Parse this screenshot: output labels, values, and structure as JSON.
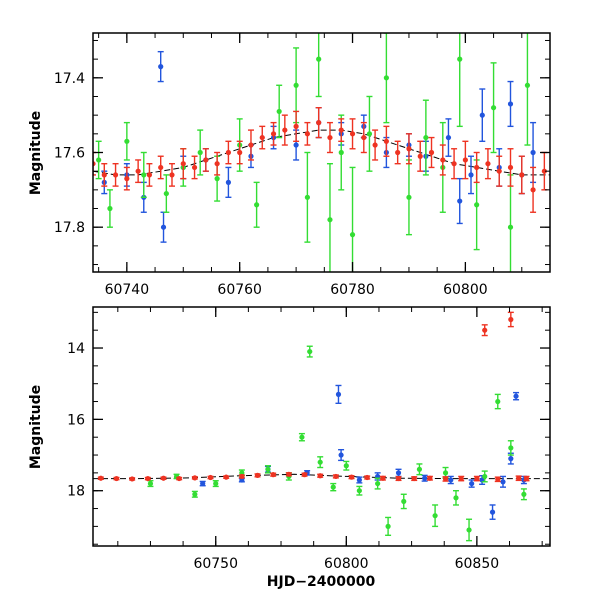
{
  "chart_data": [
    {
      "type": "scatter",
      "panel": "top",
      "title": "",
      "xlabel": "",
      "ylabel": "Magnitude",
      "xlim": [
        60734,
        60815
      ],
      "ylim": [
        17.92,
        17.28
      ],
      "y_inverted": true,
      "grid": false,
      "x_ticks": [
        60740,
        60760,
        60780,
        60800
      ],
      "x_tick_labels": [
        "60740",
        "60760",
        "60780",
        "60800"
      ],
      "y_ticks": [
        17.4,
        17.6,
        17.8
      ],
      "y_tick_labels": [
        "17.4",
        "17.6",
        "17.8"
      ],
      "model_curve": {
        "color": "#000000",
        "x": [
          60734,
          60738,
          60742,
          60746,
          60750,
          60754,
          60758,
          60762,
          60766,
          60770,
          60774,
          60778,
          60782,
          60786,
          60790,
          60794,
          60798,
          60802,
          60806,
          60810,
          60815
        ],
        "y": [
          17.65,
          17.66,
          17.66,
          17.65,
          17.64,
          17.62,
          17.6,
          17.58,
          17.56,
          17.55,
          17.54,
          17.54,
          17.55,
          17.57,
          17.59,
          17.61,
          17.63,
          17.64,
          17.65,
          17.66,
          17.66
        ]
      },
      "series": [
        {
          "color": "#2255dd",
          "x": [
            60736,
            60740,
            60743,
            60746,
            60746.5,
            60750,
            60754,
            60758,
            60762,
            60766,
            60770,
            60774,
            60778,
            60782,
            60786,
            60790,
            60793,
            60797,
            60799,
            60801,
            60803,
            60806,
            60808,
            60810,
            60812
          ],
          "y": [
            17.68,
            17.66,
            17.72,
            17.37,
            17.8,
            17.64,
            17.62,
            17.68,
            17.61,
            17.56,
            17.58,
            17.52,
            17.55,
            17.53,
            17.6,
            17.58,
            17.61,
            17.56,
            17.73,
            17.66,
            17.5,
            17.64,
            17.47,
            17.66,
            17.6
          ],
          "yerr": [
            0.03,
            0.03,
            0.04,
            0.04,
            0.04,
            0.03,
            0.03,
            0.04,
            0.03,
            0.03,
            0.04,
            0.04,
            0.03,
            0.03,
            0.04,
            0.03,
            0.04,
            0.05,
            0.06,
            0.05,
            0.07,
            0.05,
            0.06,
            0.05,
            0.08
          ]
        },
        {
          "color": "#33dd33",
          "x": [
            60735,
            60737,
            60740,
            60743,
            60747,
            60750,
            60753,
            60756,
            60760,
            60763,
            60767,
            60770,
            60772,
            60774,
            60776,
            60778,
            60780,
            60783,
            60786,
            60790,
            60793,
            60796,
            60799,
            60802,
            60805,
            60808,
            60811
          ],
          "y": [
            17.62,
            17.75,
            17.57,
            17.66,
            17.71,
            17.64,
            17.6,
            17.67,
            17.58,
            17.74,
            17.49,
            17.42,
            17.72,
            17.35,
            17.78,
            17.6,
            17.82,
            17.55,
            17.4,
            17.72,
            17.56,
            17.64,
            17.35,
            17.74,
            17.48,
            17.8,
            17.42
          ],
          "yerr": [
            0.05,
            0.05,
            0.05,
            0.06,
            0.05,
            0.05,
            0.06,
            0.06,
            0.07,
            0.06,
            0.07,
            0.1,
            0.12,
            0.1,
            0.15,
            0.1,
            0.18,
            0.1,
            0.12,
            0.1,
            0.1,
            0.12,
            0.18,
            0.12,
            0.12,
            0.14,
            0.16
          ]
        },
        {
          "color": "#ee3322",
          "x": [
            60734,
            60736,
            60738,
            60740,
            60742,
            60744,
            60746,
            60748,
            60750,
            60752,
            60754,
            60756,
            60758,
            60760,
            60762,
            60764,
            60766,
            60768,
            60770,
            60772,
            60774,
            60776,
            60778,
            60780,
            60782,
            60784,
            60786,
            60788,
            60790,
            60792,
            60794,
            60796,
            60798,
            60800,
            60802,
            60804,
            60806,
            60808,
            60810,
            60812,
            60814
          ],
          "y": [
            17.63,
            17.66,
            17.66,
            17.67,
            17.65,
            17.66,
            17.64,
            17.66,
            17.63,
            17.64,
            17.62,
            17.63,
            17.6,
            17.6,
            17.58,
            17.56,
            17.55,
            17.54,
            17.53,
            17.55,
            17.52,
            17.56,
            17.54,
            17.55,
            17.56,
            17.58,
            17.57,
            17.6,
            17.59,
            17.61,
            17.6,
            17.62,
            17.63,
            17.62,
            17.64,
            17.63,
            17.65,
            17.64,
            17.66,
            17.7,
            17.65
          ],
          "yerr": [
            0.03,
            0.03,
            0.03,
            0.03,
            0.03,
            0.03,
            0.03,
            0.03,
            0.04,
            0.03,
            0.03,
            0.03,
            0.03,
            0.03,
            0.04,
            0.03,
            0.03,
            0.04,
            0.04,
            0.03,
            0.04,
            0.04,
            0.03,
            0.04,
            0.04,
            0.04,
            0.04,
            0.03,
            0.04,
            0.04,
            0.04,
            0.04,
            0.04,
            0.05,
            0.04,
            0.04,
            0.04,
            0.05,
            0.05,
            0.06,
            0.05
          ]
        }
      ]
    },
    {
      "type": "scatter",
      "panel": "bottom",
      "title": "",
      "xlabel": "HJD−2400000",
      "ylabel": "Magnitude",
      "xlim": [
        60703,
        60878
      ],
      "ylim": [
        19.55,
        12.85
      ],
      "y_inverted": true,
      "grid": false,
      "x_ticks": [
        60750,
        60800,
        60850
      ],
      "x_tick_labels": [
        "60750",
        "60800",
        "60850"
      ],
      "y_ticks": [
        14,
        16,
        18
      ],
      "y_tick_labels": [
        "14",
        "16",
        "18"
      ],
      "model_curve": {
        "color": "#000000",
        "x": [
          60703,
          60720,
          60740,
          60760,
          60780,
          60800,
          60820,
          60840,
          60860,
          60878
        ],
        "y": [
          17.66,
          17.66,
          17.64,
          17.58,
          17.54,
          17.6,
          17.65,
          17.66,
          17.66,
          17.66
        ]
      },
      "series": [
        {
          "color": "#2255dd",
          "x": [
            60745,
            60760,
            60770,
            60785,
            60797,
            60798,
            60805,
            60812,
            60820,
            60830,
            60840,
            60848,
            60852,
            60856,
            60860,
            60863,
            60865,
            60868
          ],
          "y": [
            17.8,
            17.7,
            17.4,
            17.5,
            15.3,
            17.0,
            17.7,
            17.6,
            17.5,
            17.65,
            17.7,
            17.8,
            17.7,
            18.6,
            17.75,
            17.1,
            15.35,
            17.7
          ],
          "yerr": [
            0.06,
            0.05,
            0.08,
            0.06,
            0.25,
            0.15,
            0.08,
            0.1,
            0.1,
            0.08,
            0.1,
            0.1,
            0.12,
            0.2,
            0.15,
            0.15,
            0.1,
            0.1
          ]
        },
        {
          "color": "#33dd33",
          "x": [
            60725,
            60735,
            60742,
            60750,
            60760,
            60770,
            60778,
            60783,
            60786,
            60790,
            60795,
            60800,
            60805,
            60812,
            60816,
            60822,
            60828,
            60834,
            60838,
            60842,
            60847,
            60853,
            60858,
            60863,
            60868
          ],
          "y": [
            17.8,
            17.6,
            18.1,
            17.8,
            17.5,
            17.4,
            17.6,
            16.5,
            14.1,
            17.2,
            17.9,
            17.3,
            18.0,
            17.8,
            19.0,
            18.3,
            17.4,
            18.7,
            17.5,
            18.2,
            19.1,
            17.6,
            15.5,
            16.8,
            18.1
          ],
          "yerr": [
            0.08,
            0.06,
            0.08,
            0.08,
            0.08,
            0.1,
            0.1,
            0.1,
            0.15,
            0.15,
            0.1,
            0.12,
            0.12,
            0.15,
            0.25,
            0.2,
            0.15,
            0.3,
            0.15,
            0.2,
            0.3,
            0.15,
            0.2,
            0.2,
            0.15
          ]
        },
        {
          "color": "#ee3322",
          "x": [
            60706,
            60712,
            60718,
            60724,
            60730,
            60736,
            60742,
            60748,
            60754,
            60760,
            60766,
            60772,
            60778,
            60784,
            60790,
            60796,
            60802,
            60808,
            60814,
            60820,
            60826,
            60832,
            60838,
            60844,
            60850,
            60853,
            60858,
            60863,
            60866,
            60869
          ],
          "y": [
            17.65,
            17.66,
            17.67,
            17.66,
            17.65,
            17.66,
            17.64,
            17.63,
            17.62,
            17.6,
            17.57,
            17.55,
            17.54,
            17.55,
            17.58,
            17.6,
            17.62,
            17.63,
            17.65,
            17.66,
            17.66,
            17.65,
            17.67,
            17.66,
            17.66,
            13.5,
            17.68,
            13.2,
            17.65,
            17.66
          ],
          "yerr": [
            0.03,
            0.03,
            0.03,
            0.03,
            0.03,
            0.03,
            0.03,
            0.03,
            0.03,
            0.04,
            0.04,
            0.04,
            0.04,
            0.04,
            0.04,
            0.04,
            0.04,
            0.04,
            0.05,
            0.05,
            0.05,
            0.05,
            0.06,
            0.06,
            0.06,
            0.15,
            0.06,
            0.2,
            0.06,
            0.06
          ]
        }
      ]
    }
  ]
}
